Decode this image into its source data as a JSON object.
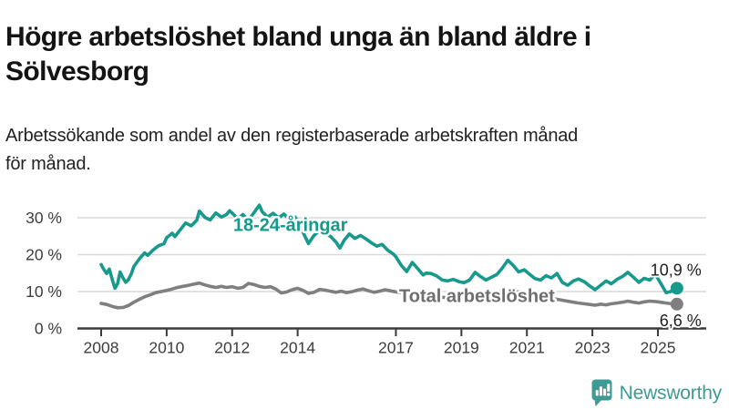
{
  "header": {
    "title": "Högre arbetslöshet bland unga än bland äldre i Sölvesborg",
    "title_lines": [
      "Högre arbetslöshet bland unga än bland äldre i",
      "Sölvesborg"
    ],
    "subtitle": "Arbetssökande som andel av den registerbaserade arbetskraften månad för månad.",
    "subtitle_lines": [
      "Arbetssökande som andel av den registerbaserade arbetskraften månad",
      "för månad."
    ]
  },
  "footer": {
    "brand": "Newsworthy",
    "brand_color": "#3f9a93",
    "logo_icon": "speech-bubble-bar-chart-icon"
  },
  "chart_data": {
    "type": "line",
    "title": "Högre arbetslöshet bland unga än bland äldre i Sölvesborg",
    "subtitle": "Arbetssökande som andel av den registerbaserade arbetskraften månad för månad.",
    "xlabel": "",
    "ylabel": "",
    "x_unit": "year",
    "xlim": [
      2007.3,
      2026.1
    ],
    "ylim": [
      0,
      34
    ],
    "grid": "horizontal",
    "legend": "inline-labels",
    "axis_color": "#3b3b3b",
    "grid_color": "#d9d9d9",
    "xticks": [
      2008,
      2010,
      2012,
      2014,
      2017,
      2019,
      2021,
      2023,
      2025
    ],
    "yticks": [
      {
        "value": 0,
        "label": "0 %"
      },
      {
        "value": 10,
        "label": "10 %"
      },
      {
        "value": 20,
        "label": "20 %"
      },
      {
        "value": 30,
        "label": "30 %"
      }
    ],
    "series": [
      {
        "name": "18-24-åringar",
        "color": "#17998b",
        "label_color": "#17998b",
        "end_value": 10.9,
        "end_label": "10,9 %",
        "label_pos": {
          "x": 2012.03,
          "y": 26.4
        },
        "points": [
          [
            2008.0,
            17.3
          ],
          [
            2008.08,
            16.0
          ],
          [
            2008.17,
            14.9
          ],
          [
            2008.25,
            16.1
          ],
          [
            2008.33,
            13.5
          ],
          [
            2008.42,
            10.9
          ],
          [
            2008.5,
            12.1
          ],
          [
            2008.58,
            15.3
          ],
          [
            2008.67,
            13.6
          ],
          [
            2008.75,
            12.5
          ],
          [
            2008.83,
            13.2
          ],
          [
            2008.92,
            14.8
          ],
          [
            2009.0,
            16.8
          ],
          [
            2009.17,
            18.9
          ],
          [
            2009.33,
            20.5
          ],
          [
            2009.42,
            19.8
          ],
          [
            2009.58,
            21.2
          ],
          [
            2009.75,
            22.4
          ],
          [
            2009.92,
            23.0
          ],
          [
            2010.0,
            24.6
          ],
          [
            2010.17,
            25.8
          ],
          [
            2010.25,
            24.9
          ],
          [
            2010.42,
            26.8
          ],
          [
            2010.58,
            28.6
          ],
          [
            2010.75,
            27.8
          ],
          [
            2010.92,
            29.3
          ],
          [
            2011.0,
            31.8
          ],
          [
            2011.17,
            30.1
          ],
          [
            2011.33,
            29.4
          ],
          [
            2011.5,
            31.3
          ],
          [
            2011.67,
            30.2
          ],
          [
            2011.83,
            30.9
          ],
          [
            2011.92,
            31.9
          ],
          [
            2012.08,
            30.6
          ],
          [
            2012.17,
            29.6
          ],
          [
            2012.33,
            30.9
          ],
          [
            2012.5,
            29.4
          ],
          [
            2012.67,
            31.4
          ],
          [
            2012.83,
            33.4
          ],
          [
            2012.92,
            31.6
          ],
          [
            2013.08,
            30.2
          ],
          [
            2013.25,
            31.2
          ],
          [
            2013.42,
            30.0
          ],
          [
            2013.58,
            31.0
          ],
          [
            2013.75,
            29.6
          ],
          [
            2013.92,
            30.2
          ],
          [
            2014.0,
            29.0
          ],
          [
            2014.17,
            26.0
          ],
          [
            2014.33,
            23.0
          ],
          [
            2014.5,
            25.2
          ],
          [
            2014.67,
            26.6
          ],
          [
            2014.83,
            25.8
          ],
          [
            2015.0,
            25.0
          ],
          [
            2015.17,
            23.4
          ],
          [
            2015.29,
            21.8
          ],
          [
            2015.42,
            23.9
          ],
          [
            2015.58,
            25.6
          ],
          [
            2015.75,
            24.4
          ],
          [
            2015.92,
            25.2
          ],
          [
            2016.08,
            24.3
          ],
          [
            2016.25,
            23.2
          ],
          [
            2016.42,
            22.3
          ],
          [
            2016.58,
            22.8
          ],
          [
            2016.75,
            21.2
          ],
          [
            2016.92,
            20.2
          ],
          [
            2017.0,
            19.4
          ],
          [
            2017.17,
            17.0
          ],
          [
            2017.33,
            15.4
          ],
          [
            2017.5,
            17.9
          ],
          [
            2017.67,
            16.2
          ],
          [
            2017.83,
            14.5
          ],
          [
            2017.92,
            15.0
          ],
          [
            2018.08,
            14.9
          ],
          [
            2018.25,
            14.2
          ],
          [
            2018.42,
            13.1
          ],
          [
            2018.58,
            12.9
          ],
          [
            2018.75,
            13.3
          ],
          [
            2018.92,
            12.7
          ],
          [
            2019.08,
            12.4
          ],
          [
            2019.25,
            13.1
          ],
          [
            2019.42,
            15.2
          ],
          [
            2019.58,
            14.1
          ],
          [
            2019.75,
            13.1
          ],
          [
            2019.92,
            13.9
          ],
          [
            2020.08,
            14.6
          ],
          [
            2020.25,
            16.4
          ],
          [
            2020.42,
            18.5
          ],
          [
            2020.58,
            17.1
          ],
          [
            2020.75,
            15.3
          ],
          [
            2020.92,
            15.9
          ],
          [
            2021.08,
            14.7
          ],
          [
            2021.25,
            13.5
          ],
          [
            2021.42,
            13.1
          ],
          [
            2021.58,
            14.3
          ],
          [
            2021.75,
            13.7
          ],
          [
            2021.92,
            14.9
          ],
          [
            2022.08,
            12.5
          ],
          [
            2022.25,
            11.7
          ],
          [
            2022.42,
            12.9
          ],
          [
            2022.58,
            13.4
          ],
          [
            2022.75,
            12.7
          ],
          [
            2022.92,
            11.5
          ],
          [
            2023.08,
            10.5
          ],
          [
            2023.25,
            11.7
          ],
          [
            2023.42,
            12.9
          ],
          [
            2023.58,
            12.1
          ],
          [
            2023.75,
            13.3
          ],
          [
            2023.92,
            14.1
          ],
          [
            2024.08,
            15.2
          ],
          [
            2024.25,
            13.9
          ],
          [
            2024.42,
            12.5
          ],
          [
            2024.58,
            13.6
          ],
          [
            2024.75,
            13.1
          ],
          [
            2024.92,
            14.7
          ],
          [
            2025.08,
            12.3
          ],
          [
            2025.25,
            9.7
          ],
          [
            2025.42,
            10.1
          ],
          [
            2025.58,
            10.9
          ]
        ]
      },
      {
        "name": "Total arbetslöshet",
        "color": "#7f7f7f",
        "label_color": "#6e6e6e",
        "end_value": 6.6,
        "end_label": "6,6 %",
        "label_pos": {
          "x": 2017.1,
          "y": 7.2
        },
        "points": [
          [
            2008.0,
            6.8
          ],
          [
            2008.17,
            6.5
          ],
          [
            2008.33,
            6.0
          ],
          [
            2008.5,
            5.6
          ],
          [
            2008.67,
            5.7
          ],
          [
            2008.83,
            6.2
          ],
          [
            2009.0,
            7.1
          ],
          [
            2009.17,
            7.9
          ],
          [
            2009.33,
            8.6
          ],
          [
            2009.5,
            9.1
          ],
          [
            2009.67,
            9.7
          ],
          [
            2009.83,
            10.0
          ],
          [
            2010.0,
            10.3
          ],
          [
            2010.17,
            10.7
          ],
          [
            2010.33,
            11.1
          ],
          [
            2010.5,
            11.4
          ],
          [
            2010.67,
            11.7
          ],
          [
            2010.83,
            12.0
          ],
          [
            2011.0,
            12.3
          ],
          [
            2011.17,
            11.8
          ],
          [
            2011.33,
            11.4
          ],
          [
            2011.5,
            11.1
          ],
          [
            2011.67,
            11.4
          ],
          [
            2011.83,
            11.1
          ],
          [
            2012.0,
            11.3
          ],
          [
            2012.17,
            10.9
          ],
          [
            2012.33,
            11.1
          ],
          [
            2012.5,
            12.2
          ],
          [
            2012.67,
            11.9
          ],
          [
            2012.83,
            11.4
          ],
          [
            2013.0,
            11.1
          ],
          [
            2013.17,
            11.3
          ],
          [
            2013.33,
            10.7
          ],
          [
            2013.5,
            9.6
          ],
          [
            2013.67,
            9.9
          ],
          [
            2013.83,
            10.5
          ],
          [
            2014.0,
            10.9
          ],
          [
            2014.17,
            10.3
          ],
          [
            2014.33,
            9.5
          ],
          [
            2014.5,
            9.8
          ],
          [
            2014.67,
            10.6
          ],
          [
            2014.83,
            10.4
          ],
          [
            2015.0,
            10.1
          ],
          [
            2015.17,
            9.8
          ],
          [
            2015.33,
            10.1
          ],
          [
            2015.5,
            9.7
          ],
          [
            2015.67,
            10.0
          ],
          [
            2015.83,
            10.4
          ],
          [
            2016.0,
            10.7
          ],
          [
            2016.17,
            10.2
          ],
          [
            2016.33,
            9.8
          ],
          [
            2016.5,
            10.1
          ],
          [
            2016.67,
            10.5
          ],
          [
            2016.83,
            10.2
          ],
          [
            2017.0,
            9.9
          ],
          [
            2017.25,
            9.6
          ],
          [
            2017.5,
            9.3
          ],
          [
            2017.75,
            9.0
          ],
          [
            2018.0,
            8.8
          ],
          [
            2018.25,
            8.5
          ],
          [
            2018.5,
            8.4
          ],
          [
            2018.75,
            8.6
          ],
          [
            2019.0,
            8.7
          ],
          [
            2019.25,
            8.9
          ],
          [
            2019.5,
            9.1
          ],
          [
            2019.75,
            9.3
          ],
          [
            2020.0,
            9.5
          ],
          [
            2020.25,
            10.1
          ],
          [
            2020.42,
            10.4
          ],
          [
            2020.67,
            10.0
          ],
          [
            2020.92,
            9.7
          ],
          [
            2021.17,
            9.3
          ],
          [
            2021.42,
            8.8
          ],
          [
            2021.67,
            8.3
          ],
          [
            2021.92,
            7.9
          ],
          [
            2022.17,
            7.5
          ],
          [
            2022.42,
            7.1
          ],
          [
            2022.58,
            6.9
          ],
          [
            2022.75,
            6.7
          ],
          [
            2022.92,
            6.5
          ],
          [
            2023.08,
            6.3
          ],
          [
            2023.25,
            6.6
          ],
          [
            2023.42,
            6.4
          ],
          [
            2023.58,
            6.7
          ],
          [
            2023.75,
            6.9
          ],
          [
            2023.92,
            7.1
          ],
          [
            2024.08,
            7.4
          ],
          [
            2024.25,
            7.1
          ],
          [
            2024.42,
            6.9
          ],
          [
            2024.58,
            7.2
          ],
          [
            2024.75,
            7.4
          ],
          [
            2024.92,
            7.3
          ],
          [
            2025.08,
            7.1
          ],
          [
            2025.25,
            6.9
          ],
          [
            2025.42,
            6.7
          ],
          [
            2025.58,
            6.6
          ]
        ]
      }
    ]
  }
}
